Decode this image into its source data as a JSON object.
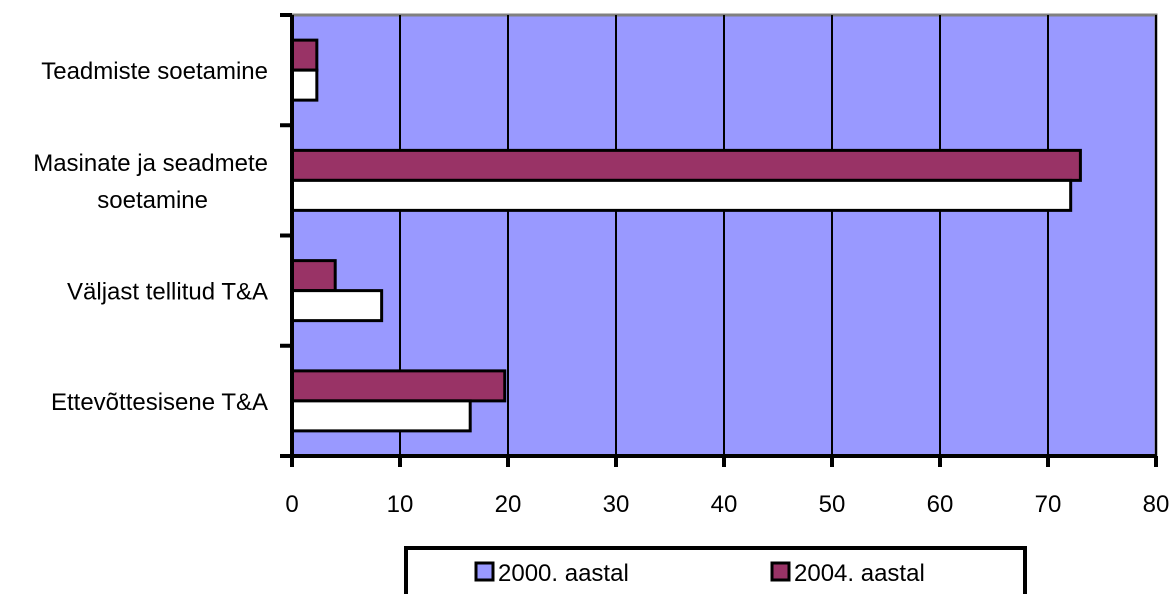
{
  "chart_data": {
    "type": "bar",
    "orientation": "horizontal",
    "categories": [
      [
        "Teadmiste soetamine"
      ],
      [
        "Masinate ja seadmete",
        "soetamine"
      ],
      [
        "Väljast tellitud T&A"
      ],
      [
        "Ettevõttesisene T&A"
      ]
    ],
    "series": [
      {
        "name": "2000. aastal",
        "color": "#ffffff",
        "values": [
          2.3,
          72.1,
          8.3,
          16.5
        ]
      },
      {
        "name": "2004. aastal",
        "color": "#993366",
        "values": [
          2.3,
          73.0,
          4.0,
          19.7
        ]
      }
    ],
    "xlim": [
      0,
      80
    ],
    "xticks": [
      0,
      10,
      20,
      30,
      40,
      50,
      60,
      70,
      80
    ],
    "plot_background": "#9999ff",
    "grid": true,
    "legend_position": "bottom"
  }
}
